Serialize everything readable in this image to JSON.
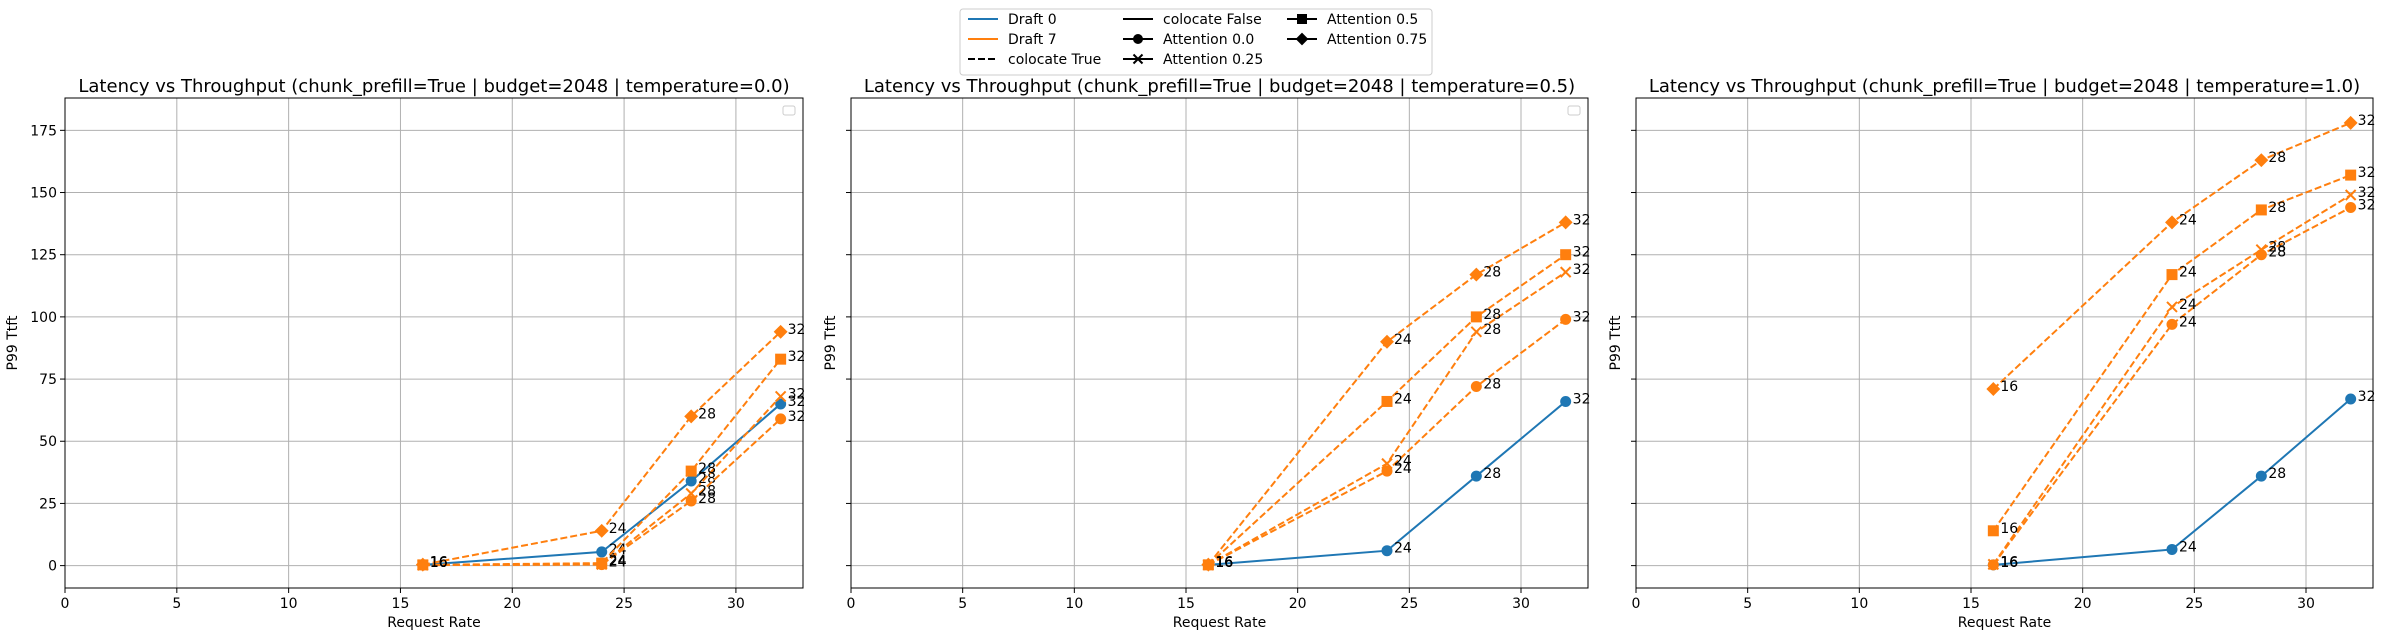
{
  "colors": {
    "draft0": "#1f77b4",
    "draft7": "#ff7f0e"
  },
  "legend": {
    "items": [
      {
        "label": "Draft 0",
        "kind": "line",
        "color": "#1f77b4",
        "dash": "solid",
        "marker": "none"
      },
      {
        "label": "Draft 7",
        "kind": "line",
        "color": "#ff7f0e",
        "dash": "solid",
        "marker": "none"
      },
      {
        "label": "colocate True",
        "kind": "line",
        "color": "#000000",
        "dash": "dashed",
        "marker": "none"
      },
      {
        "label": "colocate False",
        "kind": "line",
        "color": "#000000",
        "dash": "solid",
        "marker": "none"
      },
      {
        "label": "Attention 0.0",
        "kind": "line",
        "color": "#000000",
        "dash": "solid",
        "marker": "circle"
      },
      {
        "label": "Attention 0.25",
        "kind": "line",
        "color": "#000000",
        "dash": "solid",
        "marker": "x"
      },
      {
        "label": "Attention 0.5",
        "kind": "line",
        "color": "#000000",
        "dash": "solid",
        "marker": "square"
      },
      {
        "label": "Attention 0.75",
        "kind": "line",
        "color": "#000000",
        "dash": "solid",
        "marker": "diamond"
      }
    ]
  },
  "chart_data": [
    {
      "type": "line",
      "title": "Latency vs Throughput (chunk_prefill=True | budget=2048 | temperature=0.0)",
      "xlabel": "Request Rate",
      "ylabel": "P99 Ttft",
      "xlim": [
        0,
        33
      ],
      "ylim": [
        -9,
        188
      ],
      "xticks": [
        0,
        5,
        10,
        15,
        20,
        25,
        30
      ],
      "yticks": [
        0,
        25,
        50,
        75,
        100,
        125,
        150,
        175
      ],
      "grid": true,
      "show_ylabels": true,
      "empty_legend_box": true,
      "series": [
        {
          "color": "#1f77b4",
          "dash": "solid",
          "marker": "circle",
          "x": [
            16,
            24,
            28,
            32
          ],
          "y": [
            0.3,
            5.5,
            34,
            65
          ],
          "labels": [
            "16",
            "24",
            "28",
            "32"
          ]
        },
        {
          "color": "#ff7f0e",
          "dash": "dashed",
          "marker": "circle",
          "x": [
            16,
            24,
            28,
            32
          ],
          "y": [
            0.2,
            0.4,
            26,
            59
          ],
          "labels": [
            "16",
            "24",
            "28",
            "32"
          ]
        },
        {
          "color": "#ff7f0e",
          "dash": "dashed",
          "marker": "x",
          "x": [
            16,
            24,
            28,
            32
          ],
          "y": [
            0.2,
            0.5,
            29,
            68
          ],
          "labels": [
            "16",
            "24",
            "28",
            "32"
          ]
        },
        {
          "color": "#ff7f0e",
          "dash": "dashed",
          "marker": "square",
          "x": [
            16,
            24,
            28,
            32
          ],
          "y": [
            0.3,
            1.0,
            38,
            83
          ],
          "labels": [
            "16",
            "24",
            "28",
            "32"
          ]
        },
        {
          "color": "#ff7f0e",
          "dash": "dashed",
          "marker": "diamond",
          "x": [
            16,
            24,
            28,
            32
          ],
          "y": [
            0.4,
            14,
            60,
            94
          ],
          "labels": [
            "16",
            "24",
            "28",
            "32"
          ]
        }
      ]
    },
    {
      "type": "line",
      "title": "Latency vs Throughput (chunk_prefill=True | budget=2048 | temperature=0.5)",
      "xlabel": "Request Rate",
      "ylabel": "P99 Ttft",
      "xlim": [
        0,
        33
      ],
      "ylim": [
        -9,
        188
      ],
      "xticks": [
        0,
        5,
        10,
        15,
        20,
        25,
        30
      ],
      "yticks": [
        0,
        25,
        50,
        75,
        100,
        125,
        150,
        175
      ],
      "grid": true,
      "show_ylabels": false,
      "empty_legend_box": true,
      "series": [
        {
          "color": "#1f77b4",
          "dash": "solid",
          "marker": "circle",
          "x": [
            16,
            24,
            28,
            32
          ],
          "y": [
            0.3,
            6,
            36,
            66
          ],
          "labels": [
            "16",
            "24",
            "28",
            "32"
          ]
        },
        {
          "color": "#ff7f0e",
          "dash": "dashed",
          "marker": "circle",
          "x": [
            16,
            24,
            28,
            32
          ],
          "y": [
            0.3,
            38,
            72,
            99
          ],
          "labels": [
            "16",
            "24",
            "28",
            "32"
          ]
        },
        {
          "color": "#ff7f0e",
          "dash": "dashed",
          "marker": "x",
          "x": [
            16,
            24,
            28,
            32
          ],
          "y": [
            0.3,
            41,
            94,
            118
          ],
          "labels": [
            "16",
            "24",
            "28",
            "32"
          ]
        },
        {
          "color": "#ff7f0e",
          "dash": "dashed",
          "marker": "square",
          "x": [
            16,
            24,
            28,
            32
          ],
          "y": [
            0.3,
            66,
            100,
            125
          ],
          "labels": [
            "16",
            "24",
            "28",
            "32"
          ]
        },
        {
          "color": "#ff7f0e",
          "dash": "dashed",
          "marker": "diamond",
          "x": [
            16,
            24,
            28,
            32
          ],
          "y": [
            0.4,
            90,
            117,
            138
          ],
          "labels": [
            "16",
            "24",
            "28",
            "32"
          ]
        }
      ]
    },
    {
      "type": "line",
      "title": "Latency vs Throughput (chunk_prefill=True | budget=2048 | temperature=1.0)",
      "xlabel": "Request Rate",
      "ylabel": "P99 Ttft",
      "xlim": [
        0,
        33
      ],
      "ylim": [
        -9,
        188
      ],
      "xticks": [
        0,
        5,
        10,
        15,
        20,
        25,
        30
      ],
      "yticks": [
        0,
        25,
        50,
        75,
        100,
        125,
        150,
        175
      ],
      "grid": true,
      "show_ylabels": false,
      "empty_legend_box": false,
      "series": [
        {
          "color": "#1f77b4",
          "dash": "solid",
          "marker": "circle",
          "x": [
            16,
            24,
            28,
            32
          ],
          "y": [
            0.3,
            6.5,
            36,
            67
          ],
          "labels": [
            "16",
            "24",
            "28",
            "32"
          ]
        },
        {
          "color": "#ff7f0e",
          "dash": "dashed",
          "marker": "circle",
          "x": [
            16,
            24,
            28,
            32
          ],
          "y": [
            0.3,
            97,
            125,
            144
          ],
          "labels": [
            "16",
            "24",
            "28",
            "32"
          ]
        },
        {
          "color": "#ff7f0e",
          "dash": "dashed",
          "marker": "x",
          "x": [
            16,
            24,
            28,
            32
          ],
          "y": [
            0.5,
            104,
            127,
            149
          ],
          "labels": [
            "16",
            "24",
            "28",
            "32"
          ]
        },
        {
          "color": "#ff7f0e",
          "dash": "dashed",
          "marker": "square",
          "x": [
            16,
            24,
            28,
            32
          ],
          "y": [
            14,
            117,
            143,
            157
          ],
          "labels": [
            "16",
            "24",
            "28",
            "32"
          ]
        },
        {
          "color": "#ff7f0e",
          "dash": "dashed",
          "marker": "diamond",
          "x": [
            16,
            24,
            28,
            32
          ],
          "y": [
            71,
            138,
            163,
            178
          ],
          "labels": [
            "16",
            "24",
            "28",
            "32"
          ]
        }
      ]
    }
  ]
}
